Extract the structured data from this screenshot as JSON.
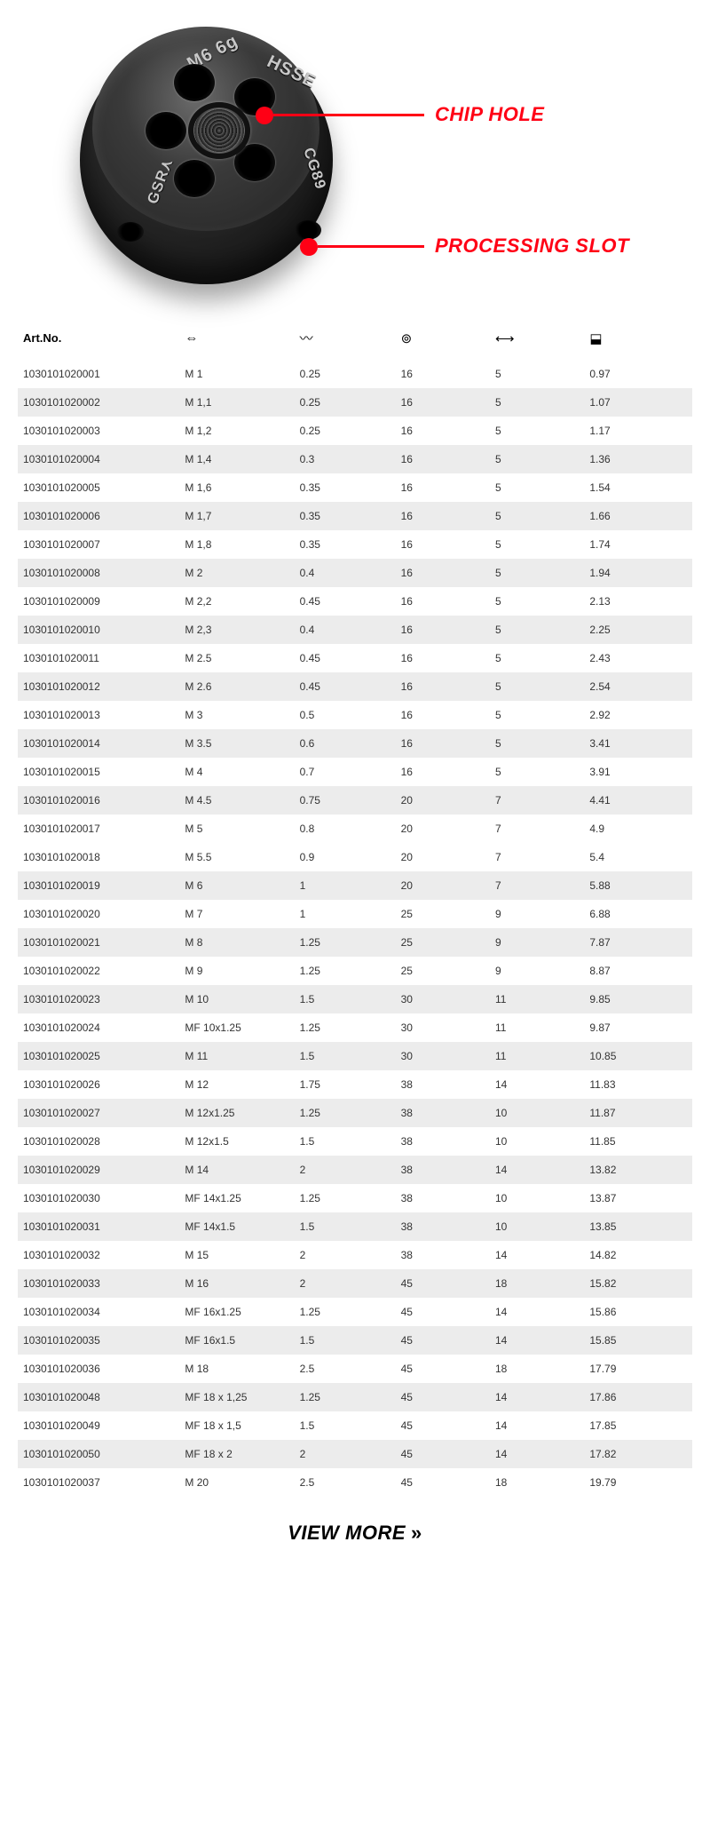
{
  "hero": {
    "markings": {
      "m6": "M6 6g",
      "hsse": "HSSE",
      "cg": "CG89",
      "gsr": "GSR⋏"
    },
    "callouts": {
      "chip": "CHIP HOLE",
      "slot": "PROCESSING SLOT"
    },
    "colors": {
      "accent": "#ff0015"
    }
  },
  "table": {
    "headers": {
      "art": "Art.No.",
      "size_icon": "⇔",
      "pitch_icon": "〰",
      "od_icon": "⊚",
      "th_icon": "⟷",
      "w_icon": "⬓"
    },
    "rows": [
      [
        "1030101020001",
        "M 1",
        "0.25",
        "16",
        "5",
        "0.97"
      ],
      [
        "1030101020002",
        "M 1,1",
        "0.25",
        "16",
        "5",
        "1.07"
      ],
      [
        "1030101020003",
        "M 1,2",
        "0.25",
        "16",
        "5",
        "1.17"
      ],
      [
        "1030101020004",
        "M 1,4",
        "0.3",
        "16",
        "5",
        "1.36"
      ],
      [
        "1030101020005",
        "M 1,6",
        "0.35",
        "16",
        "5",
        "1.54"
      ],
      [
        "1030101020006",
        "M 1,7",
        "0.35",
        "16",
        "5",
        "1.66"
      ],
      [
        "1030101020007",
        "M 1,8",
        "0.35",
        "16",
        "5",
        "1.74"
      ],
      [
        "1030101020008",
        "M 2",
        "0.4",
        "16",
        "5",
        "1.94"
      ],
      [
        "1030101020009",
        "M 2,2",
        "0.45",
        "16",
        "5",
        "2.13"
      ],
      [
        "1030101020010",
        "M 2,3",
        "0.4",
        "16",
        "5",
        "2.25"
      ],
      [
        "1030101020011",
        "M 2.5",
        "0.45",
        "16",
        "5",
        "2.43"
      ],
      [
        "1030101020012",
        "M 2.6",
        "0.45",
        "16",
        "5",
        "2.54"
      ],
      [
        "1030101020013",
        "M 3",
        "0.5",
        "16",
        "5",
        "2.92"
      ],
      [
        "1030101020014",
        "M 3.5",
        "0.6",
        "16",
        "5",
        "3.41"
      ],
      [
        "1030101020015",
        "M 4",
        "0.7",
        "16",
        "5",
        "3.91"
      ],
      [
        "1030101020016",
        "M 4.5",
        "0.75",
        "20",
        "7",
        "4.41"
      ],
      [
        "1030101020017",
        "M 5",
        "0.8",
        "20",
        "7",
        "4.9"
      ],
      [
        "1030101020018",
        "M 5.5",
        "0.9",
        "20",
        "7",
        "5.4"
      ],
      [
        "1030101020019",
        "M 6",
        "1",
        "20",
        "7",
        "5.88"
      ],
      [
        "1030101020020",
        "M 7",
        "1",
        "25",
        "9",
        "6.88"
      ],
      [
        "1030101020021",
        "M 8",
        "1.25",
        "25",
        "9",
        "7.87"
      ],
      [
        "1030101020022",
        "M 9",
        "1.25",
        "25",
        "9",
        "8.87"
      ],
      [
        "1030101020023",
        "M 10",
        "1.5",
        "30",
        "11",
        "9.85"
      ],
      [
        "1030101020024",
        "MF 10x1.25",
        "1.25",
        "30",
        "11",
        "9.87"
      ],
      [
        "1030101020025",
        "M 11",
        "1.5",
        "30",
        "11",
        "10.85"
      ],
      [
        "1030101020026",
        "M 12",
        "1.75",
        "38",
        "14",
        "11.83"
      ],
      [
        "1030101020027",
        "M 12x1.25",
        "1.25",
        "38",
        "10",
        "11.87"
      ],
      [
        "1030101020028",
        "M 12x1.5",
        "1.5",
        "38",
        "10",
        "11.85"
      ],
      [
        "1030101020029",
        "M 14",
        "2",
        "38",
        "14",
        "13.82"
      ],
      [
        "1030101020030",
        "MF 14x1.25",
        "1.25",
        "38",
        "10",
        "13.87"
      ],
      [
        "1030101020031",
        "MF 14x1.5",
        "1.5",
        "38",
        "10",
        "13.85"
      ],
      [
        "1030101020032",
        "M 15",
        "2",
        "38",
        "14",
        "14.82"
      ],
      [
        "1030101020033",
        "M 16",
        "2",
        "45",
        "18",
        "15.82"
      ],
      [
        "1030101020034",
        "MF 16x1.25",
        "1.25",
        "45",
        "14",
        "15.86"
      ],
      [
        "1030101020035",
        "MF 16x1.5",
        "1.5",
        "45",
        "14",
        "15.85"
      ],
      [
        "1030101020036",
        "M 18",
        "2.5",
        "45",
        "18",
        "17.79"
      ],
      [
        "1030101020048",
        "MF 18 x 1,25",
        "1.25",
        "45",
        "14",
        "17.86"
      ],
      [
        "1030101020049",
        "MF 18 x 1,5",
        "1.5",
        "45",
        "14",
        "17.85"
      ],
      [
        "1030101020050",
        "MF 18 x 2",
        "2",
        "45",
        "14",
        "17.82"
      ],
      [
        "1030101020037",
        "M 20",
        "2.5",
        "45",
        "18",
        "19.79"
      ]
    ],
    "alt_rows": [
      1,
      3,
      5,
      7,
      9,
      11,
      13,
      15,
      18,
      20,
      22,
      24,
      26,
      28,
      30,
      32,
      34,
      36,
      38
    ],
    "row_bg_alt": "#ececec"
  },
  "view_more": {
    "label": "VIEW MORE",
    "chev": "»"
  }
}
